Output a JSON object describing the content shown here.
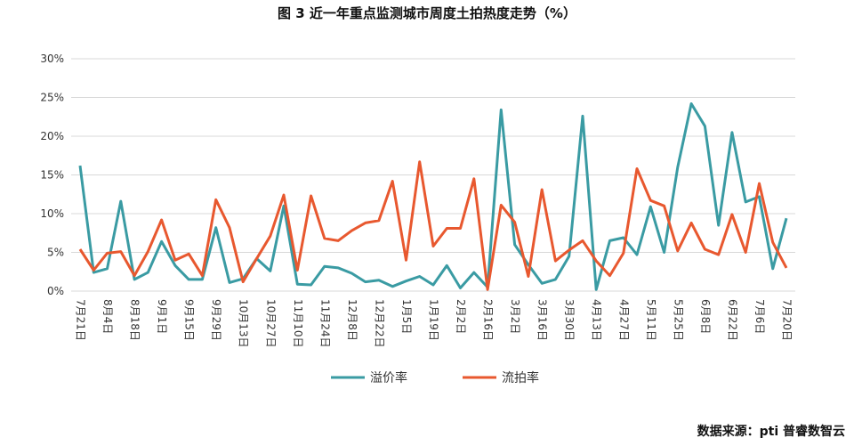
{
  "chart_data": {
    "type": "line",
    "title": "图 3 近一年重点监测城市周度土拍热度走势（%）",
    "source": "数据来源：pti 普睿数智云",
    "categories": [
      "7月21日",
      null,
      "8月4日",
      null,
      "8月18日",
      null,
      "9月1日",
      null,
      "9月15日",
      null,
      "9月29日",
      null,
      "10月13日",
      null,
      "10月27日",
      null,
      "11月10日",
      null,
      "11月24日",
      null,
      "12月8日",
      null,
      "12月22日",
      null,
      "1月5日",
      null,
      "1月19日",
      null,
      "2月2日",
      null,
      "2月16日",
      null,
      "3月2日",
      null,
      "3月16日",
      null,
      "3月30日",
      null,
      "4月13日",
      null,
      "4月27日",
      null,
      "5月11日",
      null,
      "5月25日",
      null,
      "6月8日",
      null,
      "6月22日",
      null,
      "7月6日",
      null,
      "7月20日"
    ],
    "series": [
      {
        "name": "溢价率",
        "color": "#3a9ba3",
        "values": [
          16.2,
          2.4,
          2.9,
          11.6,
          1.5,
          2.4,
          6.4,
          3.3,
          1.5,
          1.5,
          8.2,
          1.1,
          1.6,
          4.2,
          2.6,
          11.0,
          0.9,
          0.8,
          3.2,
          3.0,
          2.3,
          1.2,
          1.4,
          0.6,
          1.3,
          1.9,
          0.8,
          3.3,
          0.4,
          2.4,
          0.5,
          23.4,
          6.0,
          3.4,
          1.0,
          1.5,
          4.5,
          22.6,
          0.2,
          6.5,
          6.9,
          4.7,
          10.9,
          5.0,
          16.0,
          24.2,
          21.3,
          8.5,
          20.5,
          11.5,
          12.2,
          2.9,
          9.4
        ]
      },
      {
        "name": "流拍率",
        "color": "#e8582f",
        "values": [
          5.4,
          2.7,
          4.9,
          5.1,
          2.0,
          5.1,
          9.2,
          4.0,
          4.8,
          2.0,
          11.8,
          8.2,
          1.2,
          4.2,
          7.1,
          12.4,
          2.7,
          12.3,
          6.8,
          6.5,
          7.8,
          8.8,
          9.1,
          14.2,
          4.0,
          16.7,
          5.8,
          8.1,
          8.1,
          14.5,
          0.2,
          11.1,
          8.9,
          1.9,
          13.1,
          3.9,
          5.3,
          6.5,
          3.9,
          2.0,
          4.9,
          15.8,
          11.7,
          11.0,
          5.2,
          8.8,
          5.4,
          4.7,
          9.9,
          5.0,
          13.9,
          6.3,
          3.0
        ]
      }
    ],
    "ylim": [
      0,
      30
    ],
    "yticks": [
      {
        "value": 0,
        "label": "0%"
      },
      {
        "value": 5,
        "label": "5%"
      },
      {
        "value": 10,
        "label": "10%"
      },
      {
        "value": 15,
        "label": "15%"
      },
      {
        "value": 20,
        "label": "20%"
      },
      {
        "value": 25,
        "label": "25%"
      },
      {
        "value": 30,
        "label": "30%"
      }
    ],
    "grid": true,
    "legend": "bottom"
  }
}
